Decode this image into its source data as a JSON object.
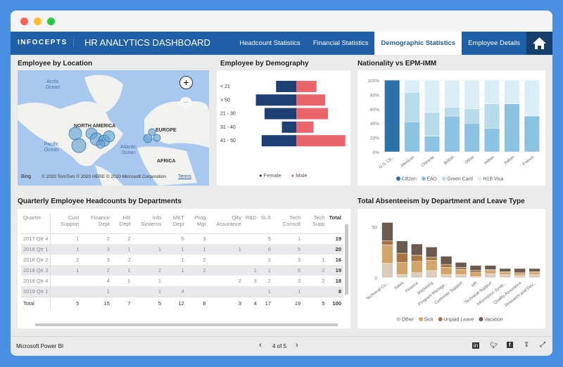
{
  "window": {
    "controls": [
      "close",
      "minimize",
      "maximize"
    ],
    "colors": {
      "close": "#fe5f57",
      "minimize": "#febc2e",
      "maximize": "#28c840"
    }
  },
  "header": {
    "logo": "INFOCEPTS",
    "title": "HR ANALYTICS DASHBOARD",
    "tabs": [
      {
        "label": "Headcount Statistics",
        "active": false
      },
      {
        "label": "Financial Statistics",
        "active": false
      },
      {
        "label": "Demographic Statistics",
        "active": true
      },
      {
        "label": "Employee Details",
        "active": false
      }
    ],
    "home_icon": "home-icon",
    "color": "#1f5fa6"
  },
  "location": {
    "title": "Employee by Location",
    "labels": {
      "arctic": "Arctic Ocean",
      "pacific": "Pacific Ocean",
      "atlantic": "Atlantic Ocean",
      "na": "NORTH AMERICA",
      "europe": "EUROPE",
      "africa": "AFRICA"
    },
    "attribution": "© 2020 TomTom © 2020 HERE © 2020 Microsoft Corporation",
    "bing": "Bing",
    "terms": "Terms"
  },
  "demography": {
    "title": "Employee by Demography",
    "categories": [
      "< 21",
      "> 50",
      "21 - 30",
      "31 - 40",
      "41 - 50"
    ],
    "female": [
      7,
      14,
      11,
      5,
      12
    ],
    "male": [
      7,
      10,
      11,
      6,
      17
    ],
    "legend": [
      "Female",
      "Male"
    ],
    "colors": {
      "female": "#1d3f73",
      "male": "#e9646b"
    }
  },
  "chart_data": [
    {
      "type": "bar",
      "stacked": "100%",
      "title": "Nationality vs EPM-IMM",
      "categories": [
        "U.S. Cit...",
        "Mexican",
        "Chinese",
        "British",
        "Other",
        "Indian",
        "Italian",
        "French"
      ],
      "yticks": [
        "0%",
        "20%",
        "40%",
        "60%",
        "80%",
        "100%"
      ],
      "ylim": [
        0,
        100
      ],
      "legend": "bottom",
      "series": [
        {
          "name": "Citizen",
          "color": "#2b72a8",
          "values": [
            100,
            0,
            0,
            0,
            0,
            0,
            0,
            0
          ]
        },
        {
          "name": "EAD",
          "color": "#8cc3e3",
          "values": [
            0,
            42,
            22,
            50,
            40,
            33,
            67,
            50
          ]
        },
        {
          "name": "Green Card",
          "color": "#b8dbec",
          "values": [
            0,
            41,
            33,
            12,
            20,
            34,
            0,
            0
          ]
        },
        {
          "name": "H1B Visa",
          "color": "#d9edf7",
          "values": [
            0,
            17,
            45,
            38,
            40,
            33,
            33,
            50
          ]
        }
      ]
    },
    {
      "type": "bar",
      "stacked": true,
      "title": "Total Absenteeism by Department and Leave Type",
      "categories": [
        "Technical Co...",
        "Sales",
        "Finance",
        "Marketing",
        "Program Manage...",
        "Customer Support",
        "HR",
        "Technical Support",
        "Information Syste...",
        "Quality Assurance",
        "Research and Dev..."
      ],
      "yticks": [
        "0",
        "50"
      ],
      "ylim": [
        0,
        55
      ],
      "legend": "bottom",
      "series": [
        {
          "name": "Other",
          "color": "#dcccbb",
          "values": [
            14,
            3,
            5,
            7,
            3,
            3,
            1,
            4,
            3,
            2,
            3
          ]
        },
        {
          "name": "Sick",
          "color": "#d1a46a",
          "values": [
            18,
            12,
            11,
            10,
            7,
            5,
            4,
            3,
            2,
            2,
            2
          ]
        },
        {
          "name": "Unpaid Leave",
          "color": "#a87545",
          "values": [
            4,
            9,
            6,
            3,
            3,
            2,
            2,
            1,
            1,
            1,
            1
          ]
        },
        {
          "name": "Vacation",
          "color": "#6b5a4e",
          "values": [
            18,
            12,
            11,
            10,
            8,
            5,
            5,
            4,
            3,
            4,
            3
          ]
        }
      ]
    }
  ],
  "headcount": {
    "title": "Quarterly Employee Headcounts by Departments",
    "columns": [
      "Quarter",
      "Cust Support",
      "Finance Dept",
      "HR Dept",
      "Info Systems",
      "MKT Dept",
      "Prog Mgt",
      "Qlty Assurance",
      "R&D",
      "SLS",
      "Tech Consult",
      "Tech Supp",
      "Total"
    ],
    "rows": [
      [
        "2017 Qtr 4",
        "1",
        "2",
        "2",
        "",
        "5",
        "3",
        "",
        "",
        "5",
        "1",
        "",
        "19"
      ],
      [
        "2018 Qtr 1",
        "1",
        "3",
        "1",
        "1",
        "1",
        "1",
        "1",
        "",
        "6",
        "5",
        "",
        "20"
      ],
      [
        "2018 Qtr 2",
        "2",
        "3",
        "2",
        "",
        "1",
        "2",
        "",
        "",
        "2",
        "3",
        "1",
        "16"
      ],
      [
        "2018 Qtr 3",
        "1",
        "2",
        "1",
        "2",
        "1",
        "2",
        "",
        "1",
        "1",
        "6",
        "2",
        "19"
      ],
      [
        "2018 Qtr 4",
        "",
        "4",
        "1",
        "1",
        "",
        "",
        "2",
        "3",
        "2",
        "3",
        "2",
        "18"
      ],
      [
        "2019 Qtr 1",
        "",
        "1",
        "",
        "1",
        "4",
        "",
        "",
        "",
        "1",
        "1",
        "",
        "8"
      ]
    ],
    "total": [
      "Total",
      "5",
      "15",
      "7",
      "5",
      "12",
      "8",
      "3",
      "4",
      "17",
      "19",
      "5",
      "100"
    ]
  },
  "footer": {
    "brand": "Microsoft Power BI",
    "page": "4 of 5",
    "icons": [
      "linkedin-icon",
      "twitter-icon",
      "facebook-icon",
      "share-icon",
      "fullscreen-icon"
    ]
  }
}
